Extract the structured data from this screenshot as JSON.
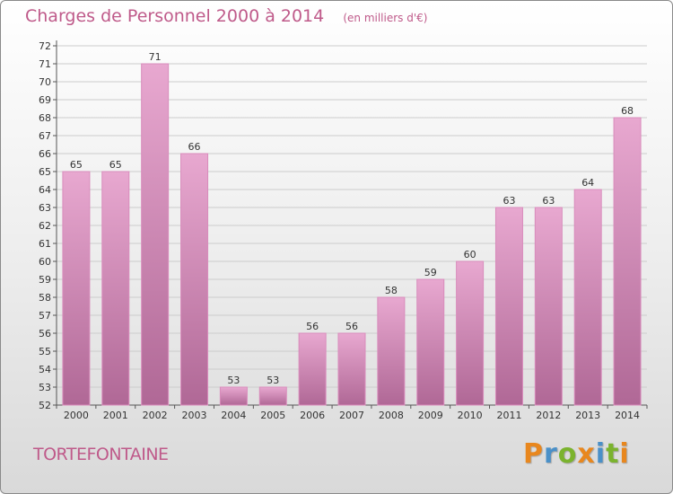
{
  "header": {
    "title": "Charges de Personnel 2000 à 2014",
    "unit": "(en milliers d'€)"
  },
  "footer": {
    "commune": "TORTEFONTAINE",
    "brand": "Proxiti",
    "brand_letters": [
      {
        "ch": "P",
        "color": "#e8871e"
      },
      {
        "ch": "r",
        "color": "#4a90c8"
      },
      {
        "ch": "o",
        "color": "#7bb32e"
      },
      {
        "ch": "x",
        "color": "#e8871e"
      },
      {
        "ch": "i",
        "color": "#4a90c8"
      },
      {
        "ch": "t",
        "color": "#7bb32e"
      },
      {
        "ch": "i",
        "color": "#e8871e"
      }
    ]
  },
  "colors": {
    "title": "#bf5a8a",
    "bar_top": "#e8a8d0",
    "bar_bottom": "#b06896",
    "grid": "#cccccc"
  },
  "chart_data": {
    "type": "bar",
    "categories": [
      "2000",
      "2001",
      "2002",
      "2003",
      "2004",
      "2005",
      "2006",
      "2007",
      "2008",
      "2009",
      "2010",
      "2011",
      "2012",
      "2013",
      "2014"
    ],
    "values": [
      65,
      65,
      71,
      66,
      53,
      53,
      56,
      56,
      58,
      59,
      60,
      63,
      63,
      64,
      68
    ],
    "title": "Charges de Personnel 2000 à 2014",
    "ylim": [
      52,
      72
    ],
    "yticks": [
      52,
      53,
      54,
      55,
      56,
      57,
      58,
      59,
      60,
      61,
      62,
      63,
      64,
      65,
      66,
      67,
      68,
      69,
      70,
      71,
      72
    ],
    "grid": true,
    "data_labels": true
  }
}
